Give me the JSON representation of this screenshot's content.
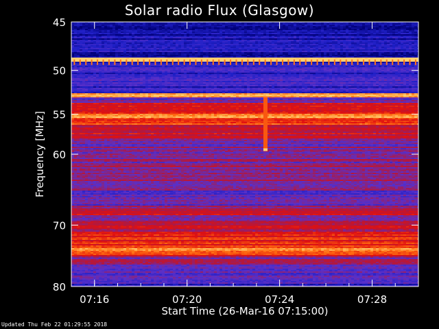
{
  "chart_data": {
    "type": "heatmap",
    "title": "Solar radio Flux (Glasgow)",
    "xlabel": "Start Time (26-Mar-16 07:15:00)",
    "ylabel": "Frequency [MHz]",
    "x_ticks": [
      "07:16",
      "07:20",
      "07:24",
      "07:28"
    ],
    "x_tick_minutes": [
      1,
      5,
      9,
      13
    ],
    "xlim_minutes": [
      0,
      15
    ],
    "y_ticks": [
      45,
      50,
      55,
      60,
      70,
      80
    ],
    "ylim": [
      45,
      80
    ],
    "y_scale": "log",
    "colormap": [
      "#000078",
      "#2020c8",
      "#5a30c8",
      "#b01840",
      "#e01010",
      "#ff6a10",
      "#ffd070"
    ],
    "frequency_bands": [
      {
        "f0": 44.8,
        "f1": 45.4,
        "level": 0.05
      },
      {
        "f0": 45.4,
        "f1": 48.6,
        "level": 0.12
      },
      {
        "f0": 48.6,
        "f1": 49.1,
        "level": 0.98
      },
      {
        "f0": 49.1,
        "f1": 50.8,
        "level": 0.2
      },
      {
        "f0": 50.8,
        "f1": 51.4,
        "level": 0.28
      },
      {
        "f0": 51.4,
        "f1": 52.6,
        "level": 0.18
      },
      {
        "f0": 52.6,
        "f1": 53.0,
        "level": 0.75
      },
      {
        "f0": 53.0,
        "f1": 53.6,
        "level": 0.35
      },
      {
        "f0": 53.6,
        "f1": 54.4,
        "level": 0.65
      },
      {
        "f0": 54.4,
        "f1": 56.2,
        "level": 0.72
      },
      {
        "f0": 56.2,
        "f1": 58.0,
        "level": 0.58
      },
      {
        "f0": 58.0,
        "f1": 61.0,
        "level": 0.42
      },
      {
        "f0": 61.0,
        "f1": 64.0,
        "level": 0.4
      },
      {
        "f0": 64.0,
        "f1": 67.0,
        "level": 0.36
      },
      {
        "f0": 67.0,
        "f1": 69.5,
        "level": 0.45
      },
      {
        "f0": 69.5,
        "f1": 71.0,
        "level": 0.55
      },
      {
        "f0": 71.0,
        "f1": 73.5,
        "level": 0.66
      },
      {
        "f0": 73.5,
        "f1": 75.0,
        "level": 0.7
      },
      {
        "f0": 75.0,
        "f1": 77.0,
        "level": 0.42
      },
      {
        "f0": 77.0,
        "f1": 79.0,
        "level": 0.34
      },
      {
        "f0": 79.0,
        "f1": 80.3,
        "level": 0.22
      }
    ],
    "bright_lines_mhz": [
      48.9,
      52.8,
      55.2,
      68.2,
      73.8
    ],
    "burst": {
      "t_min": 8.3,
      "f0": 53.0,
      "f1": 59.5
    }
  },
  "footer": "Updated Thu Feb 22 01:29:55 2018"
}
